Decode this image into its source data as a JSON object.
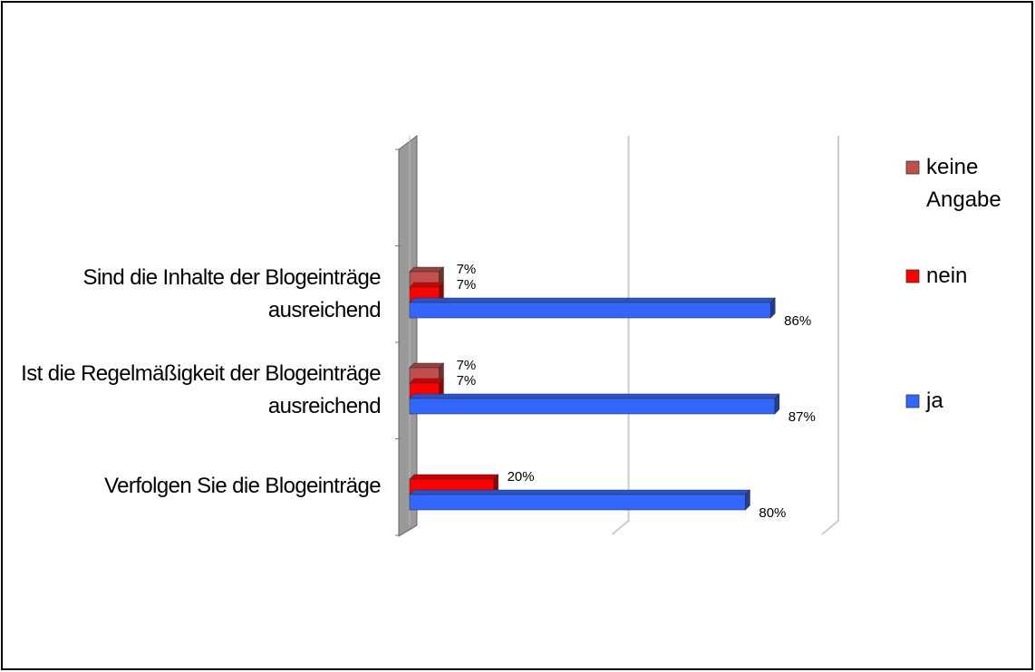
{
  "chart_data": {
    "type": "bar3d_horizontal",
    "categories": [
      "Sind die Inhalte der Blogeinträge ausreichend",
      "Ist die Regelmäßigkeit der Blogeinträge ausreichend",
      "Verfolgen Sie die Blogeinträge"
    ],
    "series": [
      {
        "name": "keine Angabe",
        "color": "#c0504d",
        "values": [
          7,
          7,
          null
        ],
        "value_labels": [
          "7%",
          "7%",
          null
        ]
      },
      {
        "name": "nein",
        "color": "#ff0000",
        "values": [
          7,
          7,
          20
        ],
        "value_labels": [
          "7%",
          "7%",
          "20%"
        ]
      },
      {
        "name": "ja",
        "color": "#3366ff",
        "values": [
          86,
          87,
          80
        ],
        "value_labels": [
          "86%",
          "87%",
          "80%"
        ]
      }
    ],
    "xlim": [
      0,
      100
    ],
    "xticks": [
      0,
      50,
      100
    ],
    "grid": true,
    "legend": "right"
  }
}
